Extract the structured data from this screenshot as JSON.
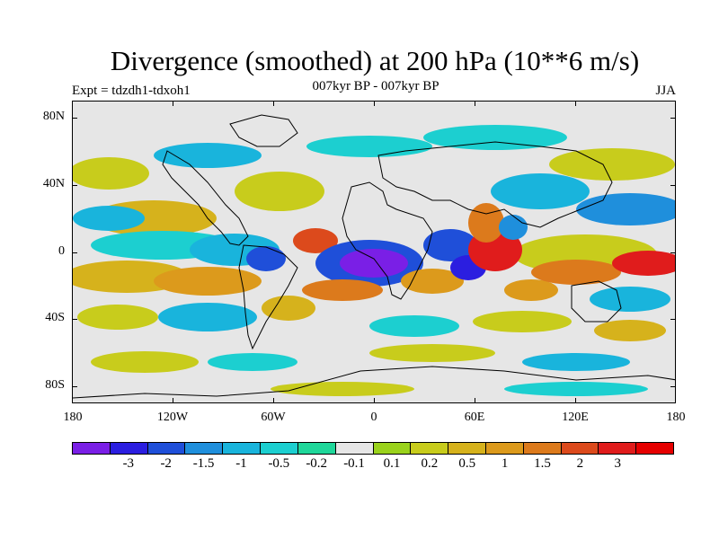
{
  "title": "Divergence (smoothed) at 200 hPa (10**6 m/s)",
  "expt_label": "Expt = tdzdh1-tdxoh1",
  "period_label": "007kyr BP - 007kyr BP",
  "season_label": "JJA",
  "y_axis_labels": [
    "80N",
    "40N",
    "0",
    "40S",
    "80S"
  ],
  "x_axis_labels": [
    "180",
    "120W",
    "60W",
    "0",
    "60E",
    "120E",
    "180"
  ],
  "colorbar": {
    "colors": [
      "#7a1fe6",
      "#2b1ee0",
      "#1f4fd9",
      "#1f8fdc",
      "#19b4dc",
      "#1ccfd0",
      "#1fd79a",
      "#e6e6e6",
      "#9ad21c",
      "#c8cc1c",
      "#d6b21c",
      "#dc9a1c",
      "#dc7a1c",
      "#dc4a1c",
      "#e01c1c",
      "#e60000"
    ],
    "labels": [
      "-3",
      "-2",
      "-1.5",
      "-1",
      "-0.5",
      "-0.2",
      "-0.1",
      "0.1",
      "0.2",
      "0.5",
      "1",
      "1.5",
      "2",
      "3"
    ]
  },
  "palette": {
    "neg_extreme": "#7a1fe6",
    "neg_strong": "#2b1ee0",
    "neg_mid": "#1f8fdc",
    "neg_weak": "#19b4dc",
    "neg_light": "#1ccfd0",
    "neg_faint": "#1fd79a",
    "neutral": "#e6e6e6",
    "pos_faint": "#9ad21c",
    "pos_light": "#c8cc1c",
    "pos_mid": "#d6b21c",
    "pos_strong": "#dc7a1c",
    "pos_extreme": "#e01c1c"
  }
}
